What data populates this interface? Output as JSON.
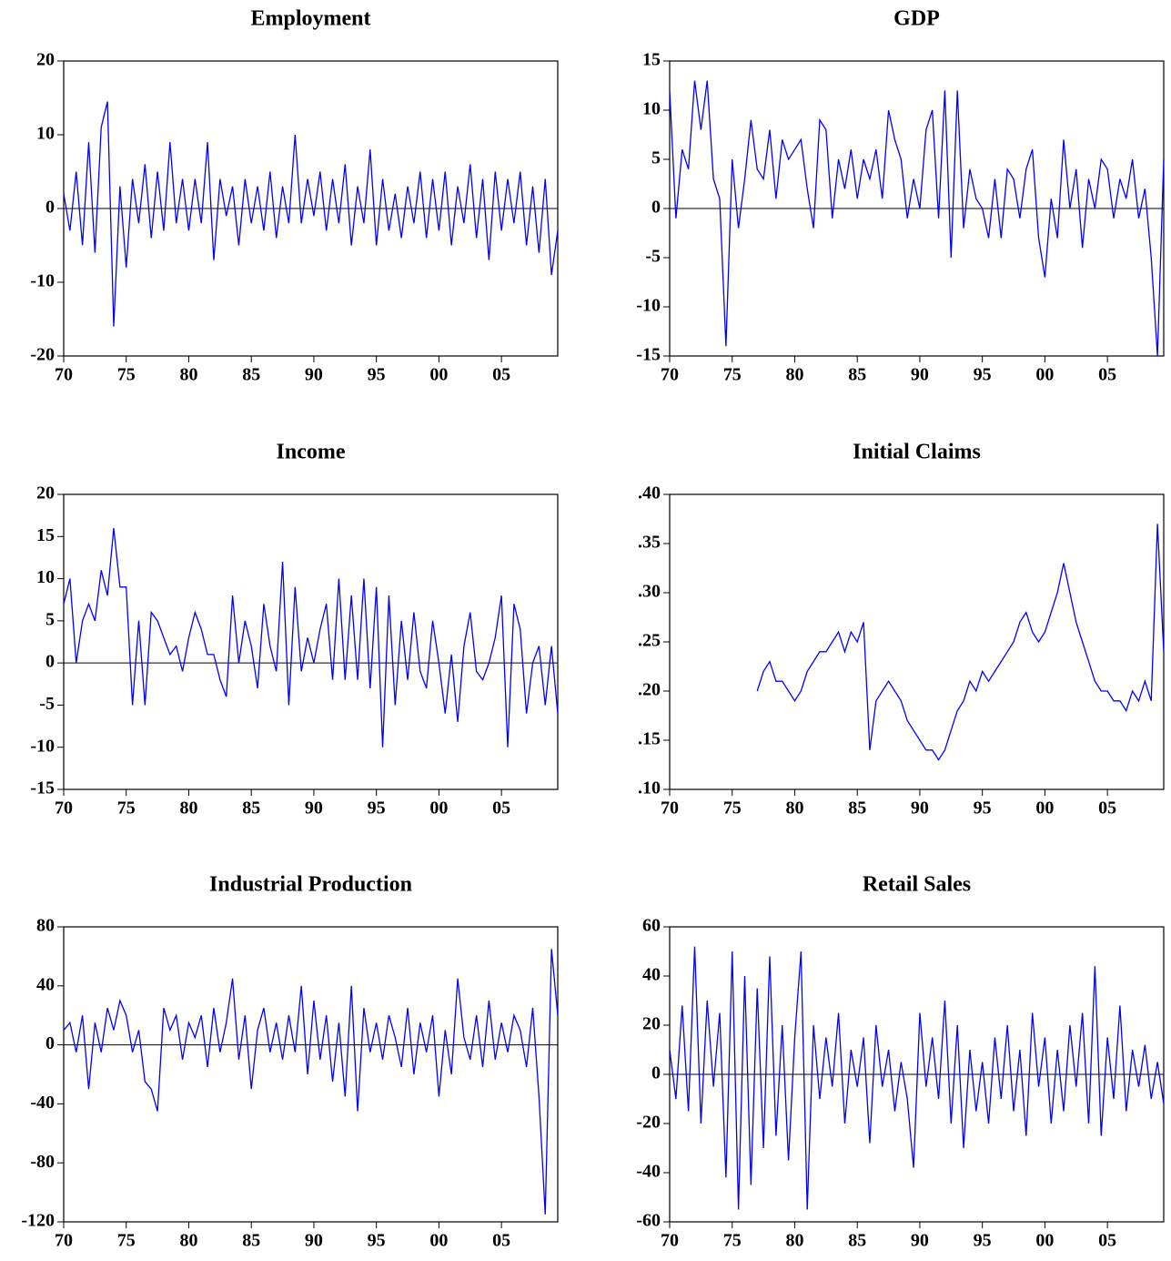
{
  "chart_data": [
    {
      "type": "line",
      "title": "Employment",
      "color": "#0000ff",
      "zero_line": true,
      "x": [
        1970,
        1970.5,
        1971,
        1971.5,
        1972,
        1972.5,
        1973,
        1973.5,
        1974,
        1974.5,
        1975,
        1975.5,
        1976,
        1976.5,
        1977,
        1977.5,
        1978,
        1978.5,
        1979,
        1979.5,
        1980,
        1980.5,
        1981,
        1981.5,
        1982,
        1982.5,
        1983,
        1983.5,
        1984,
        1984.5,
        1985,
        1985.5,
        1986,
        1986.5,
        1987,
        1987.5,
        1988,
        1988.5,
        1989,
        1989.5,
        1990,
        1990.5,
        1991,
        1991.5,
        1992,
        1992.5,
        1993,
        1993.5,
        1994,
        1994.5,
        1995,
        1995.5,
        1996,
        1996.5,
        1997,
        1997.5,
        1998,
        1998.5,
        1999,
        1999.5,
        2000,
        2000.5,
        2001,
        2001.5,
        2002,
        2002.5,
        2003,
        2003.5,
        2004,
        2004.5,
        2005,
        2005.5,
        2006,
        2006.5,
        2007,
        2007.5,
        2008,
        2008.5,
        2009,
        2009.5
      ],
      "values": [
        2,
        -3,
        5,
        -5,
        9,
        -6,
        11,
        14.5,
        -16,
        3,
        -8,
        4,
        -2,
        6,
        -4,
        5,
        -3,
        9,
        -2,
        4,
        -3,
        4,
        -2,
        9,
        -7,
        4,
        -1,
        3,
        -5,
        4,
        -2,
        3,
        -3,
        5,
        -4,
        3,
        -2,
        10,
        -2,
        4,
        -1,
        5,
        -3,
        4,
        -2,
        6,
        -5,
        3,
        -2,
        8,
        -5,
        4,
        -3,
        2,
        -4,
        3,
        -2,
        5,
        -4,
        4,
        -3,
        5,
        -5,
        3,
        -2,
        6,
        -4,
        4,
        -7,
        5,
        -3,
        4,
        -2,
        5,
        -5,
        3,
        -6,
        4,
        -9,
        -3
      ],
      "xlim": [
        1970,
        2009.5
      ],
      "ylim": [
        -20,
        20
      ],
      "xticks": [
        {
          "value": 1970,
          "label": "70"
        },
        {
          "value": 1975,
          "label": "75"
        },
        {
          "value": 1980,
          "label": "80"
        },
        {
          "value": 1985,
          "label": "85"
        },
        {
          "value": 1990,
          "label": "90"
        },
        {
          "value": 1995,
          "label": "95"
        },
        {
          "value": 2000,
          "label": "00"
        },
        {
          "value": 2005,
          "label": "05"
        }
      ],
      "yticks": [
        -20,
        -10,
        0,
        10,
        20
      ]
    },
    {
      "type": "line",
      "title": "GDP",
      "color": "#0000ff",
      "zero_line": true,
      "x": [
        1970,
        1970.5,
        1971,
        1971.5,
        1972,
        1972.5,
        1973,
        1973.5,
        1974,
        1974.5,
        1975,
        1975.5,
        1976,
        1976.5,
        1977,
        1977.5,
        1978,
        1978.5,
        1979,
        1979.5,
        1980,
        1980.5,
        1981,
        1981.5,
        1982,
        1982.5,
        1983,
        1983.5,
        1984,
        1984.5,
        1985,
        1985.5,
        1986,
        1986.5,
        1987,
        1987.5,
        1988,
        1988.5,
        1989,
        1989.5,
        1990,
        1990.5,
        1991,
        1991.5,
        1992,
        1992.5,
        1993,
        1993.5,
        1994,
        1994.5,
        1995,
        1995.5,
        1996,
        1996.5,
        1997,
        1997.5,
        1998,
        1998.5,
        1999,
        1999.5,
        2000,
        2000.5,
        2001,
        2001.5,
        2002,
        2002.5,
        2003,
        2003.5,
        2004,
        2004.5,
        2005,
        2005.5,
        2006,
        2006.5,
        2007,
        2007.5,
        2008,
        2008.5,
        2009,
        2009.5
      ],
      "values": [
        12,
        -1,
        6,
        4,
        13,
        8,
        13,
        3,
        1,
        -14,
        5,
        -2,
        3,
        9,
        4,
        3,
        8,
        1,
        7,
        5,
        6,
        7,
        2,
        -2,
        9,
        8,
        -1,
        5,
        2,
        6,
        1,
        5,
        3,
        6,
        1,
        10,
        7,
        5,
        -1,
        3,
        0,
        8,
        10,
        -1,
        12,
        -5,
        12,
        -2,
        4,
        1,
        0,
        -3,
        3,
        -3,
        4,
        3,
        -1,
        4,
        6,
        -3,
        -7,
        1,
        -3,
        7,
        0,
        4,
        -4,
        3,
        0,
        5,
        4,
        -1,
        3,
        1,
        5,
        -1,
        2,
        -5,
        -15,
        5
      ],
      "xlim": [
        1970,
        2009.5
      ],
      "ylim": [
        -15,
        15
      ],
      "xticks": [
        {
          "value": 1970,
          "label": "70"
        },
        {
          "value": 1975,
          "label": "75"
        },
        {
          "value": 1980,
          "label": "80"
        },
        {
          "value": 1985,
          "label": "85"
        },
        {
          "value": 1990,
          "label": "90"
        },
        {
          "value": 1995,
          "label": "95"
        },
        {
          "value": 2000,
          "label": "00"
        },
        {
          "value": 2005,
          "label": "05"
        }
      ],
      "yticks": [
        -15,
        -10,
        -5,
        0,
        5,
        10,
        15
      ]
    },
    {
      "type": "line",
      "title": "Income",
      "color": "#0000ff",
      "zero_line": true,
      "x": [
        1970,
        1970.5,
        1971,
        1971.5,
        1972,
        1972.5,
        1973,
        1973.5,
        1974,
        1974.5,
        1975,
        1975.5,
        1976,
        1976.5,
        1977,
        1977.5,
        1978,
        1978.5,
        1979,
        1979.5,
        1980,
        1980.5,
        1981,
        1981.5,
        1982,
        1982.5,
        1983,
        1983.5,
        1984,
        1984.5,
        1985,
        1985.5,
        1986,
        1986.5,
        1987,
        1987.5,
        1988,
        1988.5,
        1989,
        1989.5,
        1990,
        1990.5,
        1991,
        1991.5,
        1992,
        1992.5,
        1993,
        1993.5,
        1994,
        1994.5,
        1995,
        1995.5,
        1996,
        1996.5,
        1997,
        1997.5,
        1998,
        1998.5,
        1999,
        1999.5,
        2000,
        2000.5,
        2001,
        2001.5,
        2002,
        2002.5,
        2003,
        2003.5,
        2004,
        2004.5,
        2005,
        2005.5,
        2006,
        2006.5,
        2007,
        2007.5,
        2008,
        2008.5,
        2009,
        2009.5
      ],
      "values": [
        7,
        10,
        0,
        5,
        7,
        5,
        11,
        8,
        16,
        9,
        9,
        -5,
        5,
        -5,
        6,
        5,
        3,
        1,
        2,
        -1,
        3,
        6,
        4,
        1,
        1,
        -2,
        -4,
        8,
        0,
        5,
        2,
        -3,
        7,
        2,
        -1,
        12,
        -5,
        9,
        -1,
        3,
        0,
        4,
        7,
        -2,
        10,
        -2,
        8,
        -2,
        10,
        -3,
        9,
        -10,
        8,
        -5,
        5,
        -2,
        6,
        -1,
        -3,
        5,
        0,
        -6,
        1,
        -7,
        2,
        6,
        -1,
        -2,
        0,
        3,
        8,
        -10,
        7,
        4,
        -6,
        0,
        2,
        -5,
        2,
        -6
      ],
      "xlim": [
        1970,
        2009.5
      ],
      "ylim": [
        -15,
        20
      ],
      "xticks": [
        {
          "value": 1970,
          "label": "70"
        },
        {
          "value": 1975,
          "label": "75"
        },
        {
          "value": 1980,
          "label": "80"
        },
        {
          "value": 1985,
          "label": "85"
        },
        {
          "value": 1990,
          "label": "90"
        },
        {
          "value": 1995,
          "label": "95"
        },
        {
          "value": 2000,
          "label": "00"
        },
        {
          "value": 2005,
          "label": "05"
        }
      ],
      "yticks": [
        -15,
        -10,
        -5,
        0,
        5,
        10,
        15,
        20
      ]
    },
    {
      "type": "line",
      "title": "Initial Claims",
      "color": "#0000ff",
      "zero_line": false,
      "x": [
        1977,
        1977.5,
        1978,
        1978.5,
        1979,
        1979.5,
        1980,
        1980.5,
        1981,
        1981.5,
        1982,
        1982.5,
        1983,
        1983.5,
        1984,
        1984.5,
        1985,
        1985.5,
        1986,
        1986.5,
        1987,
        1987.5,
        1988,
        1988.5,
        1989,
        1989.5,
        1990,
        1990.5,
        1991,
        1991.5,
        1992,
        1992.5,
        1993,
        1993.5,
        1994,
        1994.5,
        1995,
        1995.5,
        1996,
        1996.5,
        1997,
        1997.5,
        1998,
        1998.5,
        1999,
        1999.5,
        2000,
        2000.5,
        2001,
        2001.5,
        2002,
        2002.5,
        2003,
        2003.5,
        2004,
        2004.5,
        2005,
        2005.5,
        2006,
        2006.5,
        2007,
        2007.5,
        2008,
        2008.5,
        2009,
        2009.5
      ],
      "values": [
        0.2,
        0.22,
        0.23,
        0.21,
        0.21,
        0.2,
        0.19,
        0.2,
        0.22,
        0.23,
        0.24,
        0.24,
        0.25,
        0.26,
        0.24,
        0.26,
        0.25,
        0.27,
        0.14,
        0.19,
        0.2,
        0.21,
        0.2,
        0.19,
        0.17,
        0.16,
        0.15,
        0.14,
        0.14,
        0.13,
        0.14,
        0.16,
        0.18,
        0.19,
        0.21,
        0.2,
        0.22,
        0.21,
        0.22,
        0.23,
        0.24,
        0.25,
        0.27,
        0.28,
        0.26,
        0.25,
        0.26,
        0.28,
        0.3,
        0.33,
        0.3,
        0.27,
        0.25,
        0.23,
        0.21,
        0.2,
        0.2,
        0.19,
        0.19,
        0.18,
        0.2,
        0.19,
        0.21,
        0.19,
        0.37,
        0.24
      ],
      "xlim": [
        1970,
        2009.5
      ],
      "ylim": [
        0.1,
        0.4
      ],
      "xticks": [
        {
          "value": 1970,
          "label": "70"
        },
        {
          "value": 1975,
          "label": "75"
        },
        {
          "value": 1980,
          "label": "80"
        },
        {
          "value": 1985,
          "label": "85"
        },
        {
          "value": 1990,
          "label": "90"
        },
        {
          "value": 1995,
          "label": "95"
        },
        {
          "value": 2000,
          "label": "00"
        },
        {
          "value": 2005,
          "label": "05"
        }
      ],
      "yticks": [
        {
          "value": 0.1,
          "label": ".10"
        },
        {
          "value": 0.15,
          "label": ".15"
        },
        {
          "value": 0.2,
          "label": ".20"
        },
        {
          "value": 0.25,
          "label": ".25"
        },
        {
          "value": 0.3,
          "label": ".30"
        },
        {
          "value": 0.35,
          "label": ".35"
        },
        {
          "value": 0.4,
          "label": ".40"
        }
      ]
    },
    {
      "type": "line",
      "title": "Industrial Production",
      "color": "#0000ff",
      "zero_line": true,
      "x": [
        1970,
        1970.5,
        1971,
        1971.5,
        1972,
        1972.5,
        1973,
        1973.5,
        1974,
        1974.5,
        1975,
        1975.5,
        1976,
        1976.5,
        1977,
        1977.5,
        1978,
        1978.5,
        1979,
        1979.5,
        1980,
        1980.5,
        1981,
        1981.5,
        1982,
        1982.5,
        1983,
        1983.5,
        1984,
        1984.5,
        1985,
        1985.5,
        1986,
        1986.5,
        1987,
        1987.5,
        1988,
        1988.5,
        1989,
        1989.5,
        1990,
        1990.5,
        1991,
        1991.5,
        1992,
        1992.5,
        1993,
        1993.5,
        1994,
        1994.5,
        1995,
        1995.5,
        1996,
        1996.5,
        1997,
        1997.5,
        1998,
        1998.5,
        1999,
        1999.5,
        2000,
        2000.5,
        2001,
        2001.5,
        2002,
        2002.5,
        2003,
        2003.5,
        2004,
        2004.5,
        2005,
        2005.5,
        2006,
        2006.5,
        2007,
        2007.5,
        2008,
        2008.5,
        2009,
        2009.5
      ],
      "values": [
        10,
        15,
        -5,
        20,
        -30,
        15,
        -5,
        25,
        10,
        30,
        20,
        -5,
        10,
        -25,
        -30,
        -45,
        25,
        10,
        20,
        -10,
        15,
        5,
        20,
        -15,
        25,
        -5,
        15,
        45,
        -10,
        20,
        -30,
        10,
        25,
        -5,
        15,
        -10,
        20,
        -5,
        40,
        -20,
        30,
        -10,
        20,
        -25,
        15,
        -35,
        40,
        -45,
        25,
        -5,
        15,
        -10,
        20,
        5,
        -15,
        25,
        -20,
        15,
        -5,
        20,
        -35,
        10,
        -20,
        45,
        5,
        -10,
        20,
        -15,
        30,
        -10,
        15,
        -5,
        20,
        10,
        -15,
        25,
        -35,
        -115,
        65,
        20
      ],
      "xlim": [
        1970,
        2009.5
      ],
      "ylim": [
        -120,
        80
      ],
      "xticks": [
        {
          "value": 1970,
          "label": "70"
        },
        {
          "value": 1975,
          "label": "75"
        },
        {
          "value": 1980,
          "label": "80"
        },
        {
          "value": 1985,
          "label": "85"
        },
        {
          "value": 1990,
          "label": "90"
        },
        {
          "value": 1995,
          "label": "95"
        },
        {
          "value": 2000,
          "label": "00"
        },
        {
          "value": 2005,
          "label": "05"
        }
      ],
      "yticks": [
        -120,
        -80,
        -40,
        0,
        40,
        80
      ]
    },
    {
      "type": "line",
      "title": "Retail Sales",
      "color": "#0000ff",
      "zero_line": true,
      "x": [
        1970,
        1970.5,
        1971,
        1971.5,
        1972,
        1972.5,
        1973,
        1973.5,
        1974,
        1974.5,
        1975,
        1975.5,
        1976,
        1976.5,
        1977,
        1977.5,
        1978,
        1978.5,
        1979,
        1979.5,
        1980,
        1980.5,
        1981,
        1981.5,
        1982,
        1982.5,
        1983,
        1983.5,
        1984,
        1984.5,
        1985,
        1985.5,
        1986,
        1986.5,
        1987,
        1987.5,
        1988,
        1988.5,
        1989,
        1989.5,
        1990,
        1990.5,
        1991,
        1991.5,
        1992,
        1992.5,
        1993,
        1993.5,
        1994,
        1994.5,
        1995,
        1995.5,
        1996,
        1996.5,
        1997,
        1997.5,
        1998,
        1998.5,
        1999,
        1999.5,
        2000,
        2000.5,
        2001,
        2001.5,
        2002,
        2002.5,
        2003,
        2003.5,
        2004,
        2004.5,
        2005,
        2005.5,
        2006,
        2006.5,
        2007,
        2007.5,
        2008,
        2008.5,
        2009,
        2009.5
      ],
      "values": [
        10,
        -10,
        28,
        -15,
        52,
        -20,
        30,
        -5,
        25,
        -42,
        50,
        -55,
        40,
        -45,
        35,
        -30,
        48,
        -25,
        20,
        -35,
        15,
        50,
        -55,
        20,
        -10,
        15,
        -5,
        25,
        -20,
        10,
        -5,
        15,
        -28,
        20,
        -5,
        10,
        -15,
        5,
        -10,
        -38,
        25,
        -5,
        15,
        -10,
        30,
        -20,
        20,
        -30,
        10,
        -15,
        5,
        -20,
        15,
        -10,
        20,
        -15,
        10,
        -25,
        25,
        -5,
        15,
        -20,
        10,
        -15,
        20,
        -5,
        25,
        -20,
        44,
        -25,
        15,
        -10,
        28,
        -15,
        10,
        -5,
        12,
        -10,
        5,
        -12
      ],
      "xlim": [
        1970,
        2009.5
      ],
      "ylim": [
        -60,
        60
      ],
      "xticks": [
        {
          "value": 1970,
          "label": "70"
        },
        {
          "value": 1975,
          "label": "75"
        },
        {
          "value": 1980,
          "label": "80"
        },
        {
          "value": 1985,
          "label": "85"
        },
        {
          "value": 1990,
          "label": "90"
        },
        {
          "value": 1995,
          "label": "95"
        },
        {
          "value": 2000,
          "label": "00"
        },
        {
          "value": 2005,
          "label": "05"
        }
      ],
      "yticks": [
        -60,
        -40,
        -20,
        0,
        20,
        40,
        60
      ]
    }
  ]
}
